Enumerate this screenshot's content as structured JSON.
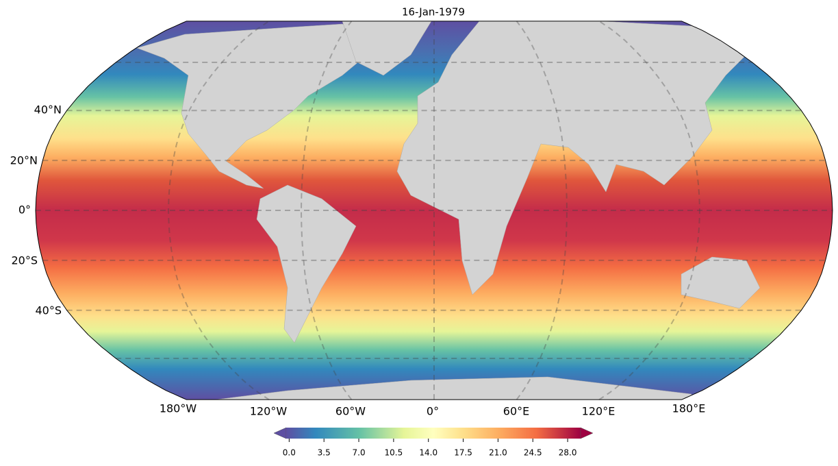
{
  "title": "16-Jan-1979",
  "lat_labels": [
    "40°N",
    "20°N",
    "0°",
    "20°S",
    "40°S"
  ],
  "lon_labels": [
    "180°W",
    "120°W",
    "60°W",
    "0°",
    "60°E",
    "120°E",
    "180°E"
  ],
  "colorbar": {
    "clim": [
      -0.3,
      29.3
    ],
    "ticks": [
      {
        "value": 0,
        "label": "0.0"
      },
      3.5,
      {
        "value": 7,
        "label": "7.0"
      },
      10.5,
      {
        "value": 14,
        "label": "14.0"
      },
      17.5,
      {
        "value": 21,
        "label": "21.0"
      },
      24.5,
      {
        "value": 28,
        "label": "28.0"
      }
    ]
  }
}
